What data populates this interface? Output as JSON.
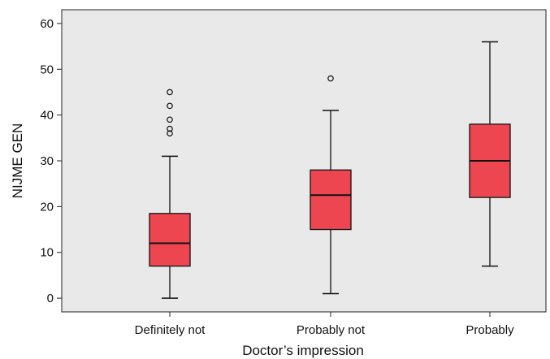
{
  "chart_data": {
    "type": "boxplot",
    "title": "",
    "xlabel": "Doctor’s impression",
    "ylabel": "NIJME GEN",
    "ylim": [
      -3,
      63
    ],
    "yticks": [
      0,
      10,
      20,
      30,
      40,
      50,
      60
    ],
    "ytick_labels": [
      "0",
      "10",
      "20",
      "30",
      "40",
      "50",
      "60"
    ],
    "grid": false,
    "plot_background": "#e9e9e9",
    "box_color": "#ee4650",
    "categories": [
      "Definitely not",
      "Probably not",
      "Probably"
    ],
    "boxes": [
      {
        "category": "Definitely not",
        "whisker_low": 0,
        "q1": 7,
        "median": 12,
        "q3": 18.5,
        "whisker_high": 31,
        "outliers": [
          36,
          37,
          39,
          42,
          45
        ]
      },
      {
        "category": "Probably not",
        "whisker_low": 1,
        "q1": 15,
        "median": 22.5,
        "q3": 28,
        "whisker_high": 41,
        "outliers": [
          48
        ]
      },
      {
        "category": "Probably",
        "whisker_low": 7,
        "q1": 22,
        "median": 30,
        "q3": 38,
        "whisker_high": 56,
        "outliers": []
      }
    ]
  }
}
